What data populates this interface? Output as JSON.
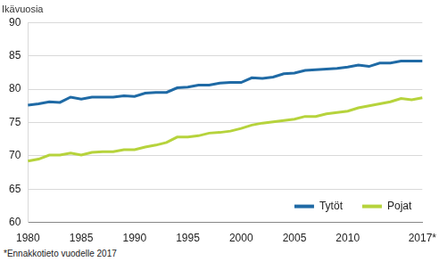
{
  "chart_data": {
    "type": "line",
    "ylabel": "Ikävuosia",
    "annotations": [
      "*Ennakkotieto vuodelle 2017"
    ],
    "categories": [
      "1980",
      null,
      null,
      null,
      null,
      "1985",
      null,
      null,
      null,
      null,
      "1990",
      null,
      null,
      null,
      null,
      "1995",
      null,
      null,
      null,
      null,
      "2000",
      null,
      null,
      null,
      null,
      "2005",
      null,
      null,
      null,
      null,
      "2010",
      null,
      null,
      null,
      null,
      null,
      null,
      "2017*"
    ],
    "series": [
      {
        "name": "Tytöt",
        "color": "#1f6aa5",
        "values": [
          77.6,
          77.8,
          78.1,
          78.0,
          78.8,
          78.5,
          78.8,
          78.8,
          78.8,
          79.0,
          78.9,
          79.4,
          79.5,
          79.5,
          80.2,
          80.3,
          80.6,
          80.6,
          80.9,
          81.0,
          81.0,
          81.7,
          81.6,
          81.8,
          82.3,
          82.4,
          82.8,
          82.9,
          83.0,
          83.1,
          83.3,
          83.6,
          83.4,
          83.9,
          83.9,
          84.2,
          84.2,
          84.2
        ]
      },
      {
        "name": "Pojat",
        "color": "#b6d33c",
        "values": [
          69.2,
          69.5,
          70.1,
          70.1,
          70.4,
          70.1,
          70.5,
          70.6,
          70.6,
          70.9,
          70.9,
          71.3,
          71.6,
          72.0,
          72.8,
          72.8,
          73.0,
          73.4,
          73.5,
          73.7,
          74.1,
          74.6,
          74.9,
          75.1,
          75.3,
          75.5,
          75.9,
          75.9,
          76.3,
          76.5,
          76.7,
          77.2,
          77.5,
          77.8,
          78.1,
          78.6,
          78.4,
          78.7
        ]
      }
    ],
    "ylim": [
      60,
      90
    ],
    "yticks": [
      60,
      65,
      70,
      75,
      80,
      85,
      90
    ],
    "grid": true,
    "legend": "lower right"
  }
}
